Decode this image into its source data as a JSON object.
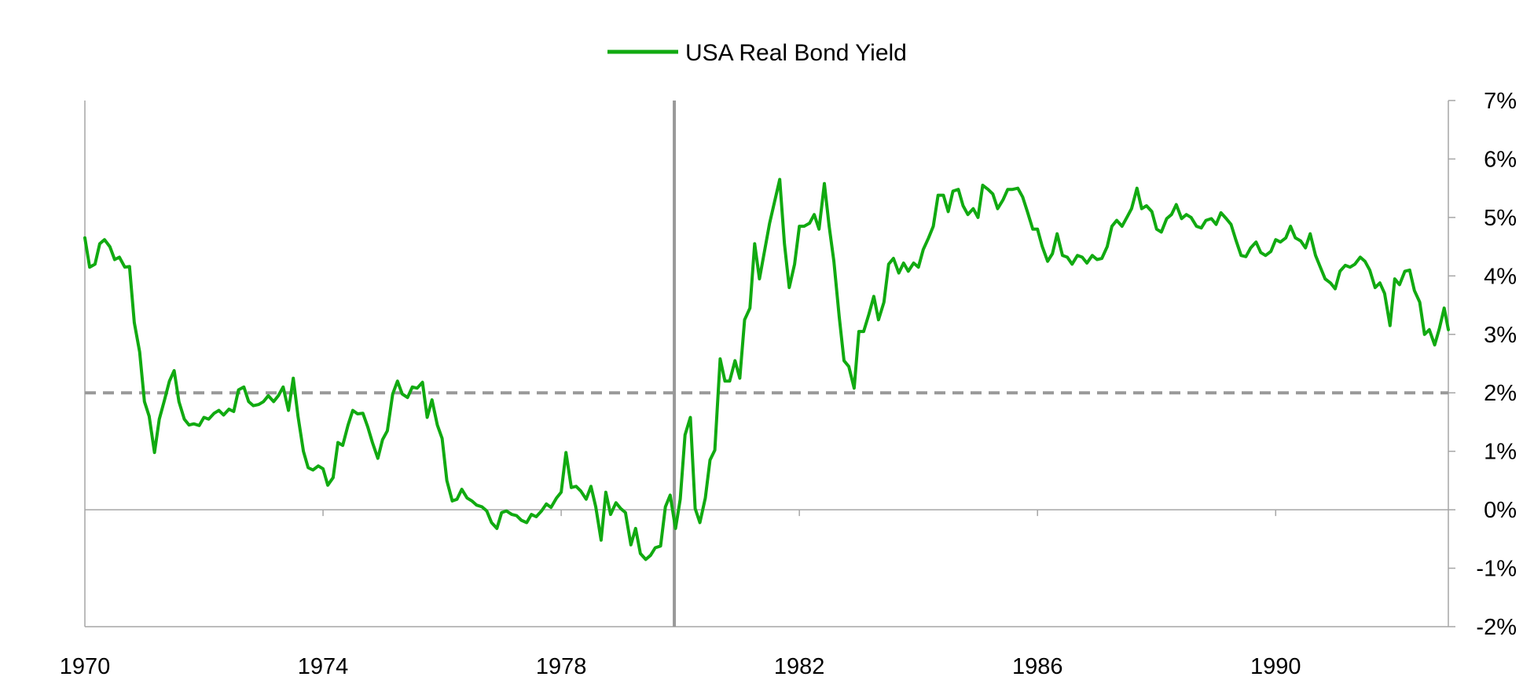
{
  "chart_data": {
    "type": "line",
    "title": "",
    "xlabel": "",
    "ylabel": "",
    "x_range": [
      1970,
      1992.9
    ],
    "ylim": [
      -2,
      7
    ],
    "x_ticks": [
      {
        "value": 1970,
        "label": "1970"
      },
      {
        "value": 1974,
        "label": "1974"
      },
      {
        "value": 1978,
        "label": "1978"
      },
      {
        "value": 1982,
        "label": "1982"
      },
      {
        "value": 1986,
        "label": "1986"
      },
      {
        "value": 1990,
        "label": "1990"
      }
    ],
    "y_ticks": [
      {
        "value": 7,
        "label": "7%"
      },
      {
        "value": 6,
        "label": "6%"
      },
      {
        "value": 5,
        "label": "5%"
      },
      {
        "value": 4,
        "label": "4%"
      },
      {
        "value": 3,
        "label": "3%"
      },
      {
        "value": 2,
        "label": "2%"
      },
      {
        "value": 1,
        "label": "1%"
      },
      {
        "value": 0,
        "label": "0%"
      },
      {
        "value": -1,
        "label": "-1%"
      },
      {
        "value": -2,
        "label": "-2%"
      }
    ],
    "y_axis_side": "right",
    "grid": false,
    "legend_position": "top-center",
    "reference_line": {
      "y": 2,
      "style": "dashed",
      "color": "#999999"
    },
    "vertical_marker": {
      "x": 1979.9,
      "color": "#999999"
    },
    "series": [
      {
        "name": "USA Real Bond Yield",
        "color": "#11AA11",
        "x": [
          1970.0,
          1970.08,
          1970.17,
          1970.25,
          1970.33,
          1970.42,
          1970.5,
          1970.58,
          1970.67,
          1970.75,
          1970.83,
          1970.92,
          1971.0,
          1971.08,
          1971.17,
          1971.25,
          1971.33,
          1971.42,
          1971.5,
          1971.58,
          1971.67,
          1971.75,
          1971.83,
          1971.92,
          1972.0,
          1972.08,
          1972.17,
          1972.25,
          1972.33,
          1972.42,
          1972.5,
          1972.58,
          1972.67,
          1972.75,
          1972.83,
          1972.92,
          1973.0,
          1973.08,
          1973.17,
          1973.25,
          1973.33,
          1973.42,
          1973.5,
          1973.58,
          1973.67,
          1973.75,
          1973.83,
          1973.92,
          1974.0,
          1974.08,
          1974.17,
          1974.25,
          1974.33,
          1974.42,
          1974.5,
          1974.58,
          1974.67,
          1974.75,
          1974.83,
          1974.92,
          1975.0,
          1975.08,
          1975.17,
          1975.25,
          1975.33,
          1975.42,
          1975.5,
          1975.58,
          1975.67,
          1975.75,
          1975.83,
          1975.92,
          1976.0,
          1976.08,
          1976.17,
          1976.25,
          1976.33,
          1976.42,
          1976.5,
          1976.58,
          1976.67,
          1976.75,
          1976.83,
          1976.92,
          1977.0,
          1977.08,
          1977.17,
          1977.25,
          1977.33,
          1977.42,
          1977.5,
          1977.58,
          1977.67,
          1977.75,
          1977.83,
          1977.92,
          1978.0,
          1978.08,
          1978.17,
          1978.25,
          1978.33,
          1978.42,
          1978.5,
          1978.58,
          1978.67,
          1978.75,
          1978.83,
          1978.92,
          1979.0,
          1979.08,
          1979.17,
          1979.25,
          1979.33,
          1979.42,
          1979.5,
          1979.58,
          1979.67,
          1979.75,
          1979.83,
          1979.92,
          1980.0,
          1980.08,
          1980.17,
          1980.25,
          1980.33,
          1980.42,
          1980.5,
          1980.58,
          1980.67,
          1980.75,
          1980.83,
          1980.92,
          1981.0,
          1981.08,
          1981.17,
          1981.25,
          1981.33,
          1981.42,
          1981.5,
          1981.58,
          1981.67,
          1981.75,
          1981.83,
          1981.92,
          1982.0,
          1982.08,
          1982.17,
          1982.25,
          1982.33,
          1982.42,
          1982.5,
          1982.58,
          1982.67,
          1982.75,
          1982.83,
          1982.92,
          1983.0,
          1983.08,
          1983.17,
          1983.25,
          1983.33,
          1983.42,
          1983.5,
          1983.58,
          1983.67,
          1983.75,
          1983.83,
          1983.92,
          1984.0,
          1984.08,
          1984.17,
          1984.25,
          1984.33,
          1984.42,
          1984.5,
          1984.58,
          1984.67,
          1984.75,
          1984.83,
          1984.92,
          1985.0,
          1985.08,
          1985.17,
          1985.25,
          1985.33,
          1985.42,
          1985.5,
          1985.58,
          1985.67,
          1985.75,
          1985.83,
          1985.92,
          1986.0,
          1986.08,
          1986.17,
          1986.25,
          1986.33,
          1986.42,
          1986.5,
          1986.58,
          1986.67,
          1986.75,
          1986.83,
          1986.92,
          1987.0,
          1987.08,
          1987.17,
          1987.25,
          1987.33,
          1987.42,
          1987.5,
          1987.58,
          1987.67,
          1987.75,
          1987.83,
          1987.92,
          1988.0,
          1988.08,
          1988.17,
          1988.25,
          1988.33,
          1988.42,
          1988.5,
          1988.58,
          1988.67,
          1988.75,
          1988.83,
          1988.92,
          1989.0,
          1989.08,
          1989.17,
          1989.25,
          1989.33,
          1989.42,
          1989.5,
          1989.58,
          1989.67,
          1989.75,
          1989.83,
          1989.92,
          1990.0,
          1990.08,
          1990.17,
          1990.25,
          1990.33,
          1990.42,
          1990.5,
          1990.58,
          1990.67,
          1990.75,
          1990.83,
          1990.92,
          1991.0,
          1991.08,
          1991.17,
          1991.25,
          1991.33,
          1991.42,
          1991.5,
          1991.58,
          1991.67,
          1991.75,
          1991.83,
          1991.92,
          1992.0,
          1992.08,
          1992.17,
          1992.25,
          1992.33,
          1992.42,
          1992.5,
          1992.58,
          1992.67,
          1992.75,
          1992.83,
          1992.9
        ],
        "values": [
          4.65,
          4.15,
          4.2,
          4.55,
          4.62,
          4.5,
          4.28,
          4.32,
          4.15,
          4.16,
          3.2,
          2.7,
          1.85,
          1.6,
          0.98,
          1.55,
          1.85,
          2.2,
          2.38,
          1.85,
          1.55,
          1.45,
          1.47,
          1.44,
          1.58,
          1.55,
          1.65,
          1.7,
          1.62,
          1.72,
          1.68,
          2.05,
          2.1,
          1.85,
          1.78,
          1.8,
          1.85,
          1.95,
          1.85,
          1.95,
          2.1,
          1.7,
          2.25,
          1.6,
          1.0,
          0.72,
          0.68,
          0.75,
          0.7,
          0.42,
          0.55,
          1.15,
          1.1,
          1.45,
          1.7,
          1.64,
          1.65,
          1.42,
          1.15,
          0.88,
          1.2,
          1.35,
          1.98,
          2.2,
          1.98,
          1.92,
          2.1,
          2.08,
          2.18,
          1.58,
          1.88,
          1.45,
          1.22,
          0.5,
          0.15,
          0.18,
          0.35,
          0.2,
          0.15,
          0.08,
          0.05,
          -0.02,
          -0.22,
          -0.32,
          -0.05,
          -0.02,
          -0.08,
          -0.1,
          -0.18,
          -0.22,
          -0.08,
          -0.12,
          -0.02,
          0.1,
          0.04,
          0.2,
          0.3,
          0.98,
          0.38,
          0.4,
          0.32,
          0.18,
          0.4,
          0.05,
          -0.52,
          0.3,
          -0.08,
          0.12,
          0.02,
          -0.05,
          -0.6,
          -0.32,
          -0.75,
          -0.85,
          -0.78,
          -0.65,
          -0.62,
          0.05,
          0.25,
          -0.32,
          0.18,
          1.28,
          1.58,
          0.02,
          -0.22,
          0.2,
          0.85,
          1.02,
          2.58,
          2.2,
          2.2,
          2.55,
          2.25,
          3.25,
          3.45,
          4.55,
          3.95,
          4.45,
          4.9,
          5.25,
          5.65,
          4.55,
          3.8,
          4.2,
          4.85,
          4.85,
          4.9,
          5.05,
          4.8,
          5.58,
          4.85,
          4.25,
          3.3,
          2.55,
          2.45,
          2.08,
          3.05,
          3.05,
          3.35,
          3.65,
          3.25,
          3.55,
          4.2,
          4.3,
          4.05,
          4.22,
          4.08,
          4.22,
          4.15,
          4.45,
          4.65,
          4.85,
          5.38,
          5.38,
          5.1,
          5.45,
          5.48,
          5.2,
          5.05,
          5.15,
          5.0,
          5.55,
          5.48,
          5.4,
          5.15,
          5.3,
          5.48,
          5.48,
          5.5,
          5.35,
          5.1,
          4.8,
          4.8,
          4.5,
          4.25,
          4.38,
          4.72,
          4.35,
          4.32,
          4.2,
          4.35,
          4.32,
          4.22,
          4.35,
          4.28,
          4.3,
          4.5,
          4.85,
          4.95,
          4.85,
          5.0,
          5.15,
          5.5,
          5.15,
          5.2,
          5.1,
          4.8,
          4.75,
          4.98,
          5.05,
          5.22,
          4.98,
          5.05,
          5.0,
          4.85,
          4.82,
          4.95,
          4.98,
          4.88,
          5.08,
          4.98,
          4.88,
          4.62,
          4.35,
          4.33,
          4.48,
          4.58,
          4.4,
          4.35,
          4.42,
          4.62,
          4.58,
          4.65,
          4.85,
          4.65,
          4.6,
          4.48,
          4.72,
          4.35,
          4.15,
          3.95,
          3.88,
          3.78,
          4.08,
          4.18,
          4.15,
          4.2,
          4.32,
          4.25,
          4.1,
          3.8,
          3.88,
          3.7,
          3.15,
          3.95,
          3.85,
          4.08,
          4.1,
          3.75,
          3.55,
          3.0,
          3.08,
          2.82,
          3.1,
          3.45,
          3.08
        ]
      }
    ]
  }
}
